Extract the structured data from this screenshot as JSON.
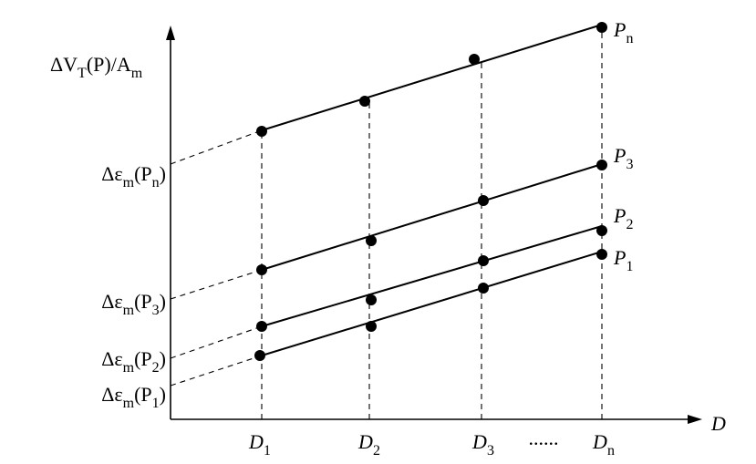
{
  "y_axis_label": [
    "ΔV",
    "T",
    "(P)/A",
    "m"
  ],
  "x_axis_label": [
    "D"
  ],
  "intercepts": [
    [
      "Δε",
      "m",
      "(P",
      "n",
      ")"
    ],
    [
      "Δε",
      "m",
      "(P",
      "3",
      ")"
    ],
    [
      "Δε",
      "m",
      "(P",
      "2",
      ")"
    ],
    [
      "Δε",
      "m",
      "(P",
      "1",
      ")"
    ]
  ],
  "x_labels": [
    [
      "D",
      "1"
    ],
    [
      "D",
      "2"
    ],
    [
      "D",
      "3"
    ],
    [
      "......"
    ],
    [
      "D",
      "n"
    ]
  ],
  "line_labels": [
    [
      "P",
      "n"
    ],
    [
      "P",
      "3"
    ],
    [
      "P",
      "2"
    ],
    [
      "P",
      "1"
    ]
  ]
}
